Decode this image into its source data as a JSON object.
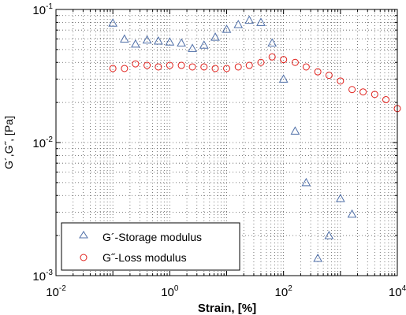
{
  "chart_data": {
    "type": "scatter",
    "title": "",
    "xlabel": "Strain, [%]",
    "ylabel": "G´,G˝, [Pa]",
    "xscale": "log",
    "yscale": "log",
    "xlim": [
      0.01,
      10000
    ],
    "ylim": [
      0.001,
      0.1
    ],
    "x_ticks": [
      {
        "value": 0.01,
        "base": "10",
        "exp": "-2"
      },
      {
        "value": 1,
        "base": "10",
        "exp": "0"
      },
      {
        "value": 100,
        "base": "10",
        "exp": "2"
      },
      {
        "value": 10000,
        "base": "10",
        "exp": "4"
      }
    ],
    "y_ticks": [
      {
        "value": 0.001,
        "base": "10",
        "exp": "-3"
      },
      {
        "value": 0.01,
        "base": "10",
        "exp": "-2"
      },
      {
        "value": 0.1,
        "base": "10",
        "exp": "-1"
      }
    ],
    "grid": "dotted",
    "legend_position": "bottom-left",
    "series": [
      {
        "name": "G´-Storage modulus",
        "marker": "triangle",
        "color": "#4f6fa8",
        "points": [
          [
            0.1,
            0.079
          ],
          [
            0.16,
            0.06
          ],
          [
            0.25,
            0.055
          ],
          [
            0.4,
            0.059
          ],
          [
            0.63,
            0.058
          ],
          [
            1.0,
            0.057
          ],
          [
            1.6,
            0.056
          ],
          [
            2.5,
            0.051
          ],
          [
            4.0,
            0.054
          ],
          [
            6.3,
            0.062
          ],
          [
            10,
            0.071
          ],
          [
            16,
            0.077
          ],
          [
            25,
            0.083
          ],
          [
            40,
            0.08
          ],
          [
            63,
            0.056
          ],
          [
            100,
            0.03
          ],
          [
            160,
            0.0122
          ],
          [
            250,
            0.005
          ],
          [
            400,
            0.00135
          ],
          [
            630,
            0.002
          ],
          [
            1000,
            0.0038
          ],
          [
            1600,
            0.0029
          ]
        ]
      },
      {
        "name": "G˝-Loss modulus",
        "marker": "circle",
        "color": "#e0201b",
        "points": [
          [
            0.1,
            0.036
          ],
          [
            0.16,
            0.036
          ],
          [
            0.25,
            0.039
          ],
          [
            0.4,
            0.038
          ],
          [
            0.63,
            0.037
          ],
          [
            1.0,
            0.038
          ],
          [
            1.6,
            0.038
          ],
          [
            2.5,
            0.037
          ],
          [
            4.0,
            0.037
          ],
          [
            6.3,
            0.036
          ],
          [
            10,
            0.036
          ],
          [
            16,
            0.037
          ],
          [
            25,
            0.038
          ],
          [
            40,
            0.04
          ],
          [
            63,
            0.044
          ],
          [
            100,
            0.042
          ],
          [
            160,
            0.04
          ],
          [
            250,
            0.037
          ],
          [
            400,
            0.034
          ],
          [
            630,
            0.032
          ],
          [
            1000,
            0.029
          ],
          [
            1600,
            0.025
          ],
          [
            2500,
            0.024
          ],
          [
            4000,
            0.023
          ],
          [
            6300,
            0.021
          ],
          [
            10000,
            0.018
          ]
        ]
      }
    ]
  }
}
